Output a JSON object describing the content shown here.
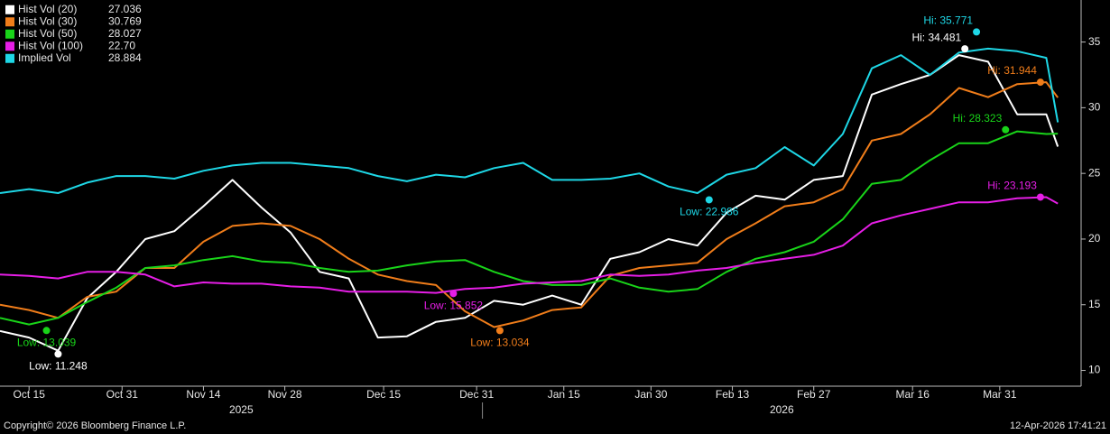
{
  "chart_data": {
    "type": "line",
    "x": [
      "2025-10-10",
      "2025-10-15",
      "2025-10-20",
      "2025-10-25",
      "2025-10-30",
      "2025-11-04",
      "2025-11-09",
      "2025-11-14",
      "2025-11-19",
      "2025-11-24",
      "2025-11-29",
      "2025-12-04",
      "2025-12-09",
      "2025-12-14",
      "2025-12-19",
      "2025-12-24",
      "2025-12-29",
      "2026-01-03",
      "2026-01-08",
      "2026-01-13",
      "2026-01-18",
      "2026-01-23",
      "2026-01-28",
      "2026-02-02",
      "2026-02-07",
      "2026-02-12",
      "2026-02-17",
      "2026-02-22",
      "2026-02-27",
      "2026-03-04",
      "2026-03-09",
      "2026-03-14",
      "2026-03-19",
      "2026-03-24",
      "2026-03-29",
      "2026-04-03",
      "2026-04-08",
      "2026-04-10"
    ],
    "series": [
      {
        "name": "Hist Vol (20)",
        "legend_value": "27.036",
        "color": "#ffffff",
        "values": [
          13.0,
          12.5,
          11.5,
          15.5,
          17.5,
          20.0,
          20.6,
          22.5,
          24.5,
          22.4,
          20.5,
          17.5,
          17.0,
          12.5,
          12.6,
          13.7,
          14.0,
          15.3,
          15.0,
          15.7,
          15.0,
          18.5,
          19.0,
          20.0,
          19.5,
          22.0,
          23.3,
          23.0,
          24.5,
          24.8,
          31.0,
          31.8,
          32.5,
          34.0,
          33.5,
          29.5,
          29.5,
          27.036
        ],
        "hi": {
          "x": "2026-03-25",
          "value": 34.481,
          "label": "Hi: 34.481"
        },
        "low": {
          "x": "2025-10-20",
          "value": 11.248,
          "label": "Low: 11.248"
        }
      },
      {
        "name": "Hist Vol (30)",
        "legend_value": "30.769",
        "color": "#f07d1a",
        "values": [
          15.0,
          14.6,
          14.0,
          15.6,
          16.0,
          17.8,
          17.8,
          19.8,
          21.0,
          21.2,
          21.0,
          20.0,
          18.5,
          17.3,
          16.8,
          16.5,
          14.5,
          13.3,
          13.8,
          14.6,
          14.8,
          17.2,
          17.8,
          18.0,
          18.2,
          20.0,
          21.2,
          22.5,
          22.8,
          23.8,
          27.5,
          28.0,
          29.5,
          31.5,
          30.8,
          31.8,
          31.944,
          30.769
        ],
        "hi": {
          "x": "2026-04-07",
          "value": 31.944,
          "label": "Hi: 31.944"
        },
        "low": {
          "x": "2026-01-04",
          "value": 13.034,
          "label": "Low: 13.034"
        }
      },
      {
        "name": "Hist Vol (50)",
        "legend_value": "28.027",
        "color": "#19d419",
        "values": [
          14.0,
          13.5,
          14.0,
          15.2,
          16.3,
          17.8,
          18.0,
          18.4,
          18.7,
          18.3,
          18.2,
          17.8,
          17.5,
          17.6,
          18.0,
          18.3,
          18.4,
          17.5,
          16.8,
          16.5,
          16.5,
          17.0,
          16.3,
          16.0,
          16.2,
          17.5,
          18.5,
          19.0,
          19.8,
          21.5,
          24.2,
          24.5,
          26.0,
          27.3,
          27.3,
          28.2,
          28.0,
          28.027
        ],
        "hi": {
          "x": "2026-04-01",
          "value": 28.323,
          "label": "Hi: 28.323"
        },
        "low": {
          "x": "2025-10-18",
          "value": 13.039,
          "label": "Low: 13.039"
        }
      },
      {
        "name": "Hist Vol (100)",
        "legend_value": "22.70",
        "color": "#e61ee6",
        "values": [
          17.3,
          17.2,
          17.0,
          17.5,
          17.5,
          17.3,
          16.4,
          16.7,
          16.6,
          16.6,
          16.4,
          16.3,
          16.0,
          16.0,
          16.0,
          15.9,
          16.2,
          16.3,
          16.6,
          16.7,
          16.8,
          17.3,
          17.2,
          17.3,
          17.6,
          17.8,
          18.2,
          18.5,
          18.8,
          19.5,
          21.2,
          21.8,
          22.3,
          22.8,
          22.8,
          23.1,
          23.193,
          22.7
        ],
        "hi": {
          "x": "2026-04-07",
          "value": 23.193,
          "label": "Hi: 23.193"
        },
        "low": {
          "x": "2025-12-27",
          "value": 15.852,
          "label": "Low: 15.852"
        }
      },
      {
        "name": "Implied Vol",
        "legend_value": "28.884",
        "color": "#1ed7e6",
        "values": [
          23.5,
          23.8,
          23.5,
          24.3,
          24.8,
          24.8,
          24.6,
          25.2,
          25.6,
          25.8,
          25.8,
          25.6,
          25.4,
          24.8,
          24.4,
          24.9,
          24.7,
          25.4,
          25.8,
          24.5,
          24.5,
          24.6,
          25.0,
          24.0,
          23.5,
          24.9,
          25.4,
          27.0,
          25.6,
          28.0,
          33.0,
          34.0,
          32.5,
          34.2,
          34.5,
          34.3,
          33.8,
          28.884
        ],
        "hi": {
          "x": "2026-03-27",
          "value": 35.771,
          "label": "Hi: 35.771"
        },
        "low": {
          "x": "2026-02-09",
          "value": 22.986,
          "label": "Low: 22.986"
        }
      }
    ],
    "xlim": [
      "2025-10-10",
      "2026-04-14"
    ],
    "xticks": [
      {
        "value": "2025-10-15",
        "label": "Oct 15"
      },
      {
        "value": "2025-10-31",
        "label": "Oct 31"
      },
      {
        "value": "2025-11-14",
        "label": "Nov 14"
      },
      {
        "value": "2025-11-28",
        "label": "Nov 28"
      },
      {
        "value": "2025-12-15",
        "label": "Dec 15"
      },
      {
        "value": "2025-12-31",
        "label": "Dec 31"
      },
      {
        "value": "2026-01-15",
        "label": "Jan 15"
      },
      {
        "value": "2026-01-30",
        "label": "Jan 30"
      },
      {
        "value": "2026-02-13",
        "label": "Feb 13"
      },
      {
        "value": "2026-02-27",
        "label": "Feb 27"
      },
      {
        "value": "2026-03-16",
        "label": "Mar 16"
      },
      {
        "value": "2026-03-31",
        "label": "Mar 31"
      }
    ],
    "year_labels": [
      "2025",
      "2026"
    ],
    "ylim": [
      8.8,
      38.2
    ],
    "yticks": [
      10,
      15,
      20,
      25,
      30,
      35
    ],
    "legend": "top-left",
    "copyright": "Copyright© 2026 Bloomberg Finance L.P.",
    "timestamp": "12-Apr-2026 17:41:21"
  }
}
